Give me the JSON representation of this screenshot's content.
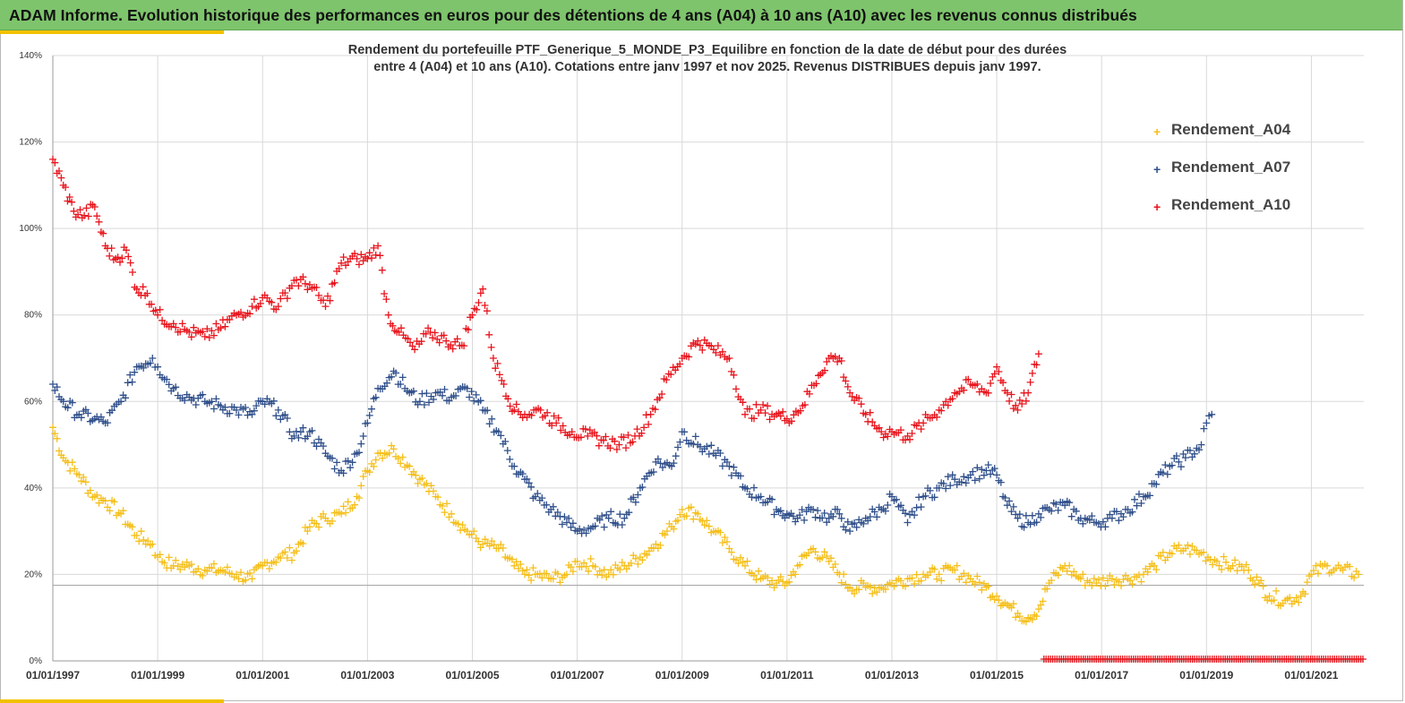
{
  "header": {
    "title": "ADAM Informe. Evolution historique des performances en euros pour des détentions de 4 ans (A04) à 10 ans (A10) avec les revenus connus distribués"
  },
  "colors": {
    "banner": "#7ec46c",
    "accent": "#f2c200",
    "A04": "#f5bf1a",
    "A07": "#2f4f8a",
    "A10": "#e8141c"
  },
  "chart_data": {
    "type": "scatter",
    "title_line1": "Rendement du portefeuille PTF_Generique_5_MONDE_P3_Equilibre  en fonction de la date de début pour des durées",
    "title_line2": "entre 4 (A04) et 10 ans (A10). Cotations entre janv 1997 et nov 2025. Revenus DISTRIBUES depuis janv 1997.",
    "ylim": [
      0,
      140
    ],
    "yticks": [
      "0%",
      "20%",
      "40%",
      "60%",
      "80%",
      "100%",
      "120%",
      "140%"
    ],
    "xlim": [
      1997.0,
      2022.0
    ],
    "xticks": [
      {
        "x": 1997.0,
        "label": "01/01/1997"
      },
      {
        "x": 1999.0,
        "label": "01/01/1999"
      },
      {
        "x": 2001.0,
        "label": "01/01/2001"
      },
      {
        "x": 2003.0,
        "label": "01/01/2003"
      },
      {
        "x": 2005.0,
        "label": "01/01/2005"
      },
      {
        "x": 2007.0,
        "label": "01/01/2007"
      },
      {
        "x": 2009.0,
        "label": "01/01/2009"
      },
      {
        "x": 2011.0,
        "label": "01/01/2011"
      },
      {
        "x": 2013.0,
        "label": "01/01/2013"
      },
      {
        "x": 2015.0,
        "label": "01/01/2015"
      },
      {
        "x": 2017.0,
        "label": "01/01/2017"
      },
      {
        "x": 2019.0,
        "label": "01/01/2019"
      },
      {
        "x": 2021.0,
        "label": "01/01/2021"
      }
    ],
    "reference_line_y": 17.5,
    "legend": [
      "Rendement_A04",
      "Rendement_A07",
      "Rendement_A10"
    ],
    "legend_position": "top-right",
    "series": [
      {
        "name": "Rendement_A04",
        "color": "#f5bf1a",
        "x": [
          1997.0,
          1997.2,
          1997.5,
          1997.8,
          1998.0,
          1998.3,
          1998.6,
          1998.9,
          1999.0,
          1999.3,
          1999.6,
          1999.9,
          2000.2,
          2000.5,
          2000.8,
          2001.0,
          2001.3,
          2001.6,
          2001.9,
          2002.2,
          2002.5,
          2002.8,
          2003.0,
          2003.2,
          2003.5,
          2003.8,
          2004.0,
          2004.3,
          2004.6,
          2004.9,
          2005.2,
          2005.5,
          2005.8,
          2006.0,
          2006.2,
          2006.5,
          2006.8,
          2007.0,
          2007.3,
          2007.6,
          2007.9,
          2008.2,
          2008.5,
          2008.8,
          2009.0,
          2009.3,
          2009.6,
          2009.9,
          2010.2,
          2010.5,
          2010.8,
          2011.0,
          2011.2,
          2011.5,
          2011.8,
          2012.0,
          2012.2,
          2012.5,
          2012.8,
          2013.0,
          2013.3,
          2013.6,
          2013.9,
          2014.2,
          2014.5,
          2014.8,
          2015.0,
          2015.2,
          2015.4,
          2015.6,
          2015.8,
          2016.0,
          2016.3,
          2016.6,
          2016.9,
          2017.2,
          2017.5,
          2017.8,
          2018.0,
          2018.3,
          2018.6,
          2018.9,
          2019.2,
          2019.5,
          2019.8,
          2020.0,
          2020.2,
          2020.5,
          2020.8,
          2021.0,
          2021.3,
          2021.6,
          2021.9
        ],
        "y": [
          54,
          47,
          43,
          38,
          37,
          34,
          29,
          27,
          24,
          22,
          22,
          21,
          21,
          20,
          19,
          22,
          24,
          25,
          31,
          33,
          34,
          38,
          44,
          48,
          49,
          45,
          42,
          38,
          34,
          30,
          27,
          26,
          22,
          20,
          20,
          19,
          20,
          23,
          22,
          20,
          22,
          24,
          27,
          31,
          35,
          34,
          30,
          26,
          22,
          19,
          18,
          18,
          22,
          26,
          23,
          20,
          17,
          17,
          17,
          18,
          19,
          20,
          20,
          21,
          19,
          17,
          15,
          13,
          11,
          10,
          12,
          18,
          22,
          19,
          18,
          19,
          19,
          20,
          22,
          25,
          26,
          25,
          23,
          22,
          21,
          18,
          15,
          14,
          15,
          20,
          22,
          21,
          20
        ]
      },
      {
        "name": "Rendement_A07",
        "color": "#2f4f8a",
        "x": [
          1997.0,
          1997.2,
          1997.5,
          1997.8,
          1998.0,
          1998.3,
          1998.6,
          1998.9,
          1999.0,
          1999.3,
          1999.6,
          1999.9,
          2000.2,
          2000.5,
          2000.8,
          2001.0,
          2001.3,
          2001.6,
          2001.9,
          2002.2,
          2002.5,
          2002.8,
          2003.0,
          2003.2,
          2003.5,
          2003.8,
          2004.0,
          2004.3,
          2004.6,
          2004.9,
          2005.2,
          2005.5,
          2005.8,
          2006.0,
          2006.2,
          2006.5,
          2006.8,
          2007.0,
          2007.3,
          2007.6,
          2007.9,
          2008.2,
          2008.5,
          2008.8,
          2009.0,
          2009.3,
          2009.6,
          2009.9,
          2010.2,
          2010.5,
          2010.8,
          2011.0,
          2011.2,
          2011.5,
          2011.8,
          2012.0,
          2012.2,
          2012.5,
          2012.8,
          2013.0,
          2013.3,
          2013.6,
          2013.9,
          2014.2,
          2014.5,
          2014.8,
          2015.0,
          2015.2,
          2015.4,
          2015.6,
          2015.8,
          2016.0,
          2016.3,
          2016.6,
          2016.9,
          2017.2,
          2017.5,
          2017.8,
          2018.0,
          2018.3,
          2018.6,
          2018.9,
          2019.0,
          2019.1
        ],
        "y": [
          64,
          60,
          57,
          56,
          55,
          60,
          68,
          70,
          68,
          63,
          61,
          60,
          59,
          58,
          57,
          60,
          58,
          52,
          53,
          48,
          44,
          48,
          55,
          63,
          67,
          62,
          60,
          62,
          61,
          63,
          58,
          53,
          45,
          42,
          38,
          35,
          32,
          30,
          31,
          33,
          33,
          40,
          46,
          45,
          53,
          50,
          48,
          45,
          40,
          38,
          35,
          34,
          33,
          35,
          33,
          34,
          30,
          33,
          35,
          38,
          32,
          38,
          40,
          42,
          43,
          44,
          43,
          36,
          33,
          32,
          34,
          35,
          36,
          33,
          32,
          33,
          35,
          38,
          41,
          45,
          47,
          50,
          55,
          57
        ]
      },
      {
        "name": "Rendement_A10",
        "color": "#e8141c",
        "x": [
          1997.0,
          1997.2,
          1997.4,
          1997.6,
          1997.8,
          1998.0,
          1998.2,
          1998.4,
          1998.6,
          1998.8,
          1999.0,
          1999.3,
          1999.6,
          1999.9,
          2000.2,
          2000.5,
          2000.8,
          2001.0,
          2001.3,
          2001.6,
          2001.9,
          2002.2,
          2002.5,
          2002.8,
          2003.0,
          2003.2,
          2003.4,
          2003.6,
          2003.9,
          2004.2,
          2004.5,
          2004.8,
          2005.0,
          2005.2,
          2005.4,
          2005.6,
          2005.8,
          2006.0,
          2006.3,
          2006.6,
          2006.9,
          2007.2,
          2007.5,
          2007.8,
          2008.1,
          2008.4,
          2008.7,
          2009.0,
          2009.3,
          2009.6,
          2009.9,
          2010.2,
          2010.5,
          2010.8,
          2011.0,
          2011.3,
          2011.6,
          2011.8,
          2012.0,
          2012.2,
          2012.5,
          2012.8,
          2013.0,
          2013.3,
          2013.6,
          2013.9,
          2014.2,
          2014.5,
          2014.8,
          2015.0,
          2015.2,
          2015.4,
          2015.6,
          2015.8
        ],
        "y": [
          116,
          110,
          104,
          103,
          105,
          96,
          93,
          95,
          86,
          85,
          80,
          78,
          76,
          75,
          77,
          80,
          82,
          84,
          82,
          88,
          87,
          82,
          92,
          93,
          93,
          96,
          80,
          76,
          72,
          76,
          74,
          73,
          80,
          86,
          70,
          64,
          58,
          57,
          58,
          55,
          53,
          52,
          51,
          50,
          52,
          57,
          65,
          70,
          74,
          72,
          70,
          57,
          58,
          57,
          56,
          59,
          66,
          70,
          70,
          62,
          57,
          53,
          53,
          52,
          55,
          58,
          62,
          64,
          62,
          68,
          62,
          58,
          62,
          71
        ]
      }
    ],
    "flat_series": {
      "name": "Rendement_A10",
      "color": "#e8141c",
      "x_start": 2015.9,
      "x_end": 2022.0,
      "y": 0
    }
  }
}
